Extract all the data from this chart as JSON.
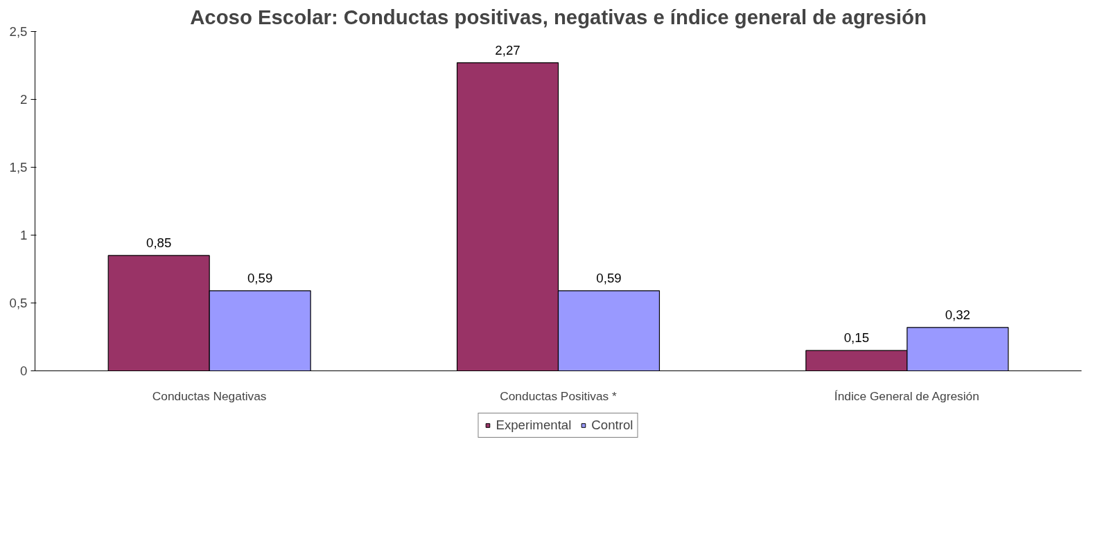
{
  "chart_data": {
    "type": "bar",
    "title": "Acoso Escolar: Conductas positivas, negativas e índice general de agresión",
    "categories": [
      "Conductas Negativas",
      "Conductas Positivas *",
      "Índice General de Agresión"
    ],
    "series": [
      {
        "name": "Experimental",
        "color": "#993366",
        "values": [
          0.85,
          2.27,
          0.15
        ],
        "value_labels": [
          "0,85",
          "2,27",
          "0,15"
        ]
      },
      {
        "name": "Control",
        "color": "#9999ff",
        "values": [
          0.59,
          0.59,
          0.32
        ],
        "value_labels": [
          "0,59",
          "0,59",
          "0,32"
        ]
      }
    ],
    "ylim": [
      0,
      2.5
    ],
    "yticks": [
      0,
      {
        "value": 0.5,
        "label": "0,5"
      },
      1,
      {
        "value": 1.5,
        "label": "1,5"
      },
      2,
      {
        "value": 2.5,
        "label": "2,5"
      }
    ],
    "grid": false,
    "legend": "bottom"
  }
}
